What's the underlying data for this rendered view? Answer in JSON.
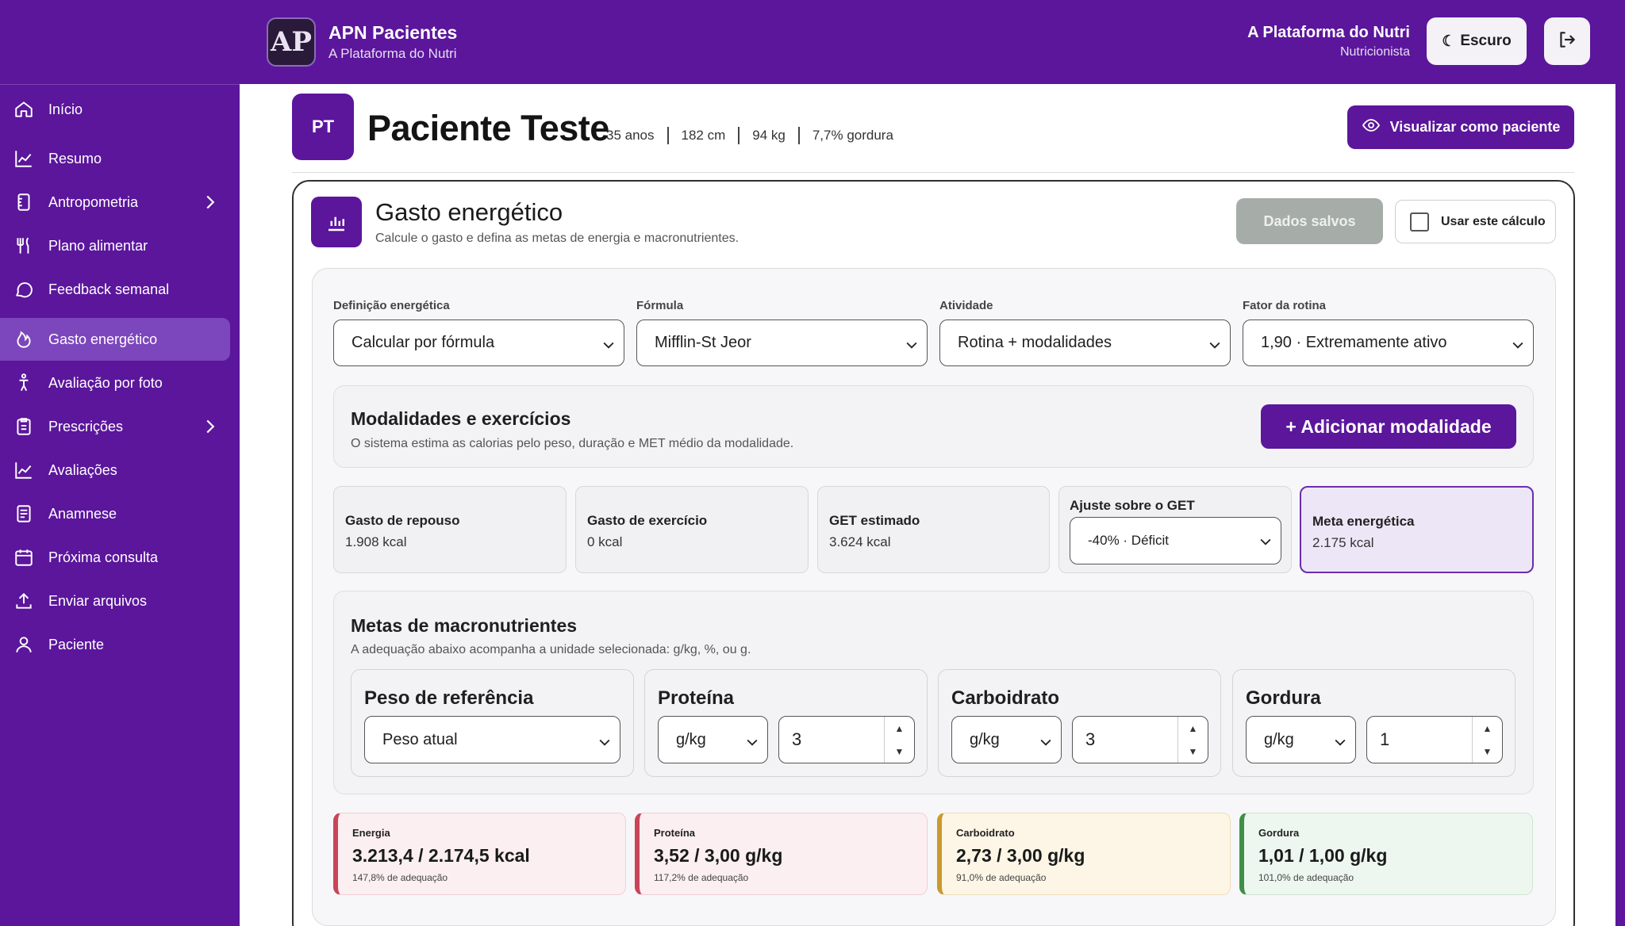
{
  "app": {
    "title": "APN Pacientes",
    "subtitle": "A Plataforma do Nutri",
    "logo_text": "AP"
  },
  "user": {
    "name": "A Plataforma do Nutri",
    "role": "Nutricionista"
  },
  "header": {
    "theme_label": "Escuro"
  },
  "sidebar": {
    "items": [
      {
        "label": "Início",
        "icon": "home-icon"
      },
      {
        "label": "Resumo",
        "icon": "chart-line-icon"
      },
      {
        "label": "Antropometria",
        "icon": "ruler-icon",
        "has_submenu": true
      },
      {
        "label": "Plano alimentar",
        "icon": "utensils-icon"
      },
      {
        "label": "Feedback semanal",
        "icon": "chat-icon"
      },
      {
        "label": "Gasto energético",
        "icon": "flame-icon",
        "active": true
      },
      {
        "label": "Avaliação por foto",
        "icon": "body-icon"
      },
      {
        "label": "Prescrições",
        "icon": "clipboard-icon",
        "has_submenu": true
      },
      {
        "label": "Avaliações",
        "icon": "chart-line-icon"
      },
      {
        "label": "Anamnese",
        "icon": "document-icon"
      },
      {
        "label": "Próxima consulta",
        "icon": "calendar-icon"
      },
      {
        "label": "Enviar arquivos",
        "icon": "upload-icon"
      },
      {
        "label": "Paciente",
        "icon": "user-icon"
      }
    ]
  },
  "patient": {
    "initials": "PT",
    "name": "Paciente Teste",
    "age": "35 anos",
    "height": "182 cm",
    "weight": "94 kg",
    "fat": "7,7% gordura",
    "view_as_patient_label": "Visualizar como paciente"
  },
  "energy": {
    "title": "Gasto energético",
    "subtitle": "Calcule o gasto e defina as metas de energia e macronutrientes.",
    "saved_label": "Dados salvos",
    "use_calc_label": "Usar este cálculo",
    "use_calc_checked": false,
    "selects": [
      {
        "label": "Definição energética",
        "value": "Calcular por fórmula"
      },
      {
        "label": "Fórmula",
        "value": "Mifflin-St Jeor"
      },
      {
        "label": "Atividade",
        "value": "Rotina + modalidades"
      },
      {
        "label": "Fator da rotina",
        "value": "1,90 · Extremamente ativo"
      }
    ],
    "modalities": {
      "title": "Modalidades e exercícios",
      "subtitle": "O sistema estima as calorias pelo peso, duração e MET médio da modalidade.",
      "add_label": "+ Adicionar modalidade"
    },
    "metrics": [
      {
        "label": "Gasto de repouso",
        "value": "1.908 kcal"
      },
      {
        "label": "Gasto de exercício",
        "value": "0 kcal"
      },
      {
        "label": "GET estimado",
        "value": "3.624 kcal"
      }
    ],
    "adjust": {
      "label": "Ajuste sobre o GET",
      "value": "-40% · Déficit"
    },
    "goal": {
      "label": "Meta energética",
      "value": "2.175 kcal"
    }
  },
  "macros": {
    "title": "Metas de macronutrientes",
    "subtitle": "A adequação abaixo acompanha a unidade selecionada: g/kg, %, ou g.",
    "reference": {
      "label": "Peso de referência",
      "value": "Peso atual"
    },
    "protein": {
      "label": "Proteína",
      "unit": "g/kg",
      "value": "3"
    },
    "carb": {
      "label": "Carboidrato",
      "unit": "g/kg",
      "value": "3"
    },
    "fat": {
      "label": "Gordura",
      "unit": "g/kg",
      "value": "1"
    }
  },
  "results": {
    "energy": {
      "label": "Energia",
      "value": "3.213,4 / 2.174,5 kcal",
      "adequacy": "147,8% de adequação"
    },
    "protein": {
      "label": "Proteína",
      "value": "3,52 / 3,00 g/kg",
      "adequacy": "117,2% de adequação"
    },
    "carb": {
      "label": "Carboidrato",
      "value": "2,73 / 3,00 g/kg",
      "adequacy": "91,0% de adequação"
    },
    "fat": {
      "label": "Gordura",
      "value": "1,01 / 1,00 g/kg",
      "adequacy": "101,0% de adequação"
    }
  },
  "colors": {
    "brand": "#5b169c",
    "brand_active": "#7c46bc",
    "saved_button": "#a6ada9"
  }
}
